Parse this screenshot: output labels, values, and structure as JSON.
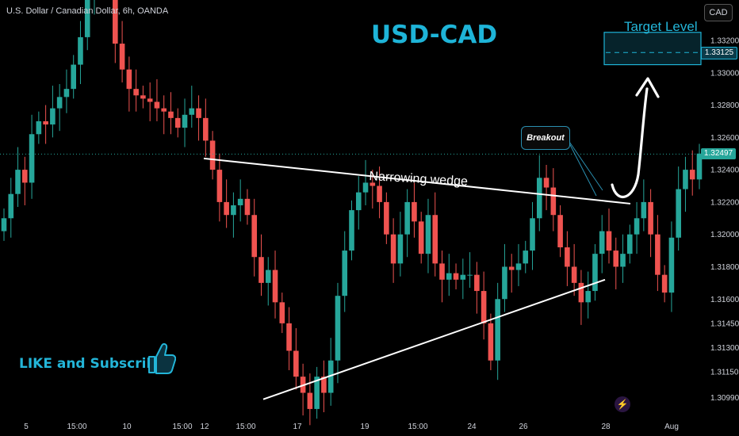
{
  "header": {
    "symbol_line": "U.S. Dollar / Canadian Dollar, 6h, OANDA"
  },
  "currency_button": "CAD",
  "title": "USD-CAD",
  "target_label": "Target Level",
  "wedge_label": "Narrowing wedge",
  "breakout_label": "Breakout",
  "like_text": "LIKE and Subscribe",
  "flash_icon": "lightning-icon",
  "colors": {
    "up": "#26a69a",
    "down": "#ef5350",
    "accent": "#1eb4d8",
    "background": "#000000",
    "text": "#d1d4dc"
  },
  "chart_data": {
    "type": "candlestick",
    "y_axis": {
      "ticks": [
        "1.33200",
        "1.33000",
        "1.32800",
        "1.32600",
        "1.32400",
        "1.32200",
        "1.32000",
        "1.31800",
        "1.31600",
        "1.31450",
        "1.31300",
        "1.31150",
        "1.30990"
      ],
      "range": [
        1.309,
        1.3345
      ],
      "current_price": "1.32497",
      "target_price": "1.33125"
    },
    "x_axis": {
      "labels": [
        "5",
        "15:00",
        "10",
        "15:00",
        "12",
        "15:00",
        "17",
        "19",
        "15:00",
        "24",
        "26",
        "28",
        "Aug"
      ]
    },
    "target_zone": [
      1.3305,
      1.3325
    ],
    "wedge": {
      "upper": [
        [
          0,
          1.3247
        ],
        [
          1,
          1.3219
        ]
      ],
      "lower": [
        [
          0,
          1.3098
        ],
        [
          1,
          1.3172
        ]
      ]
    },
    "closes": [
      1.321,
      1.3225,
      1.324,
      1.3232,
      1.3262,
      1.327,
      1.3268,
      1.3278,
      1.3285,
      1.329,
      1.3305,
      1.3322,
      1.335,
      1.338,
      1.3392,
      1.3372,
      1.3318,
      1.3302,
      1.329,
      1.3286,
      1.3284,
      1.3282,
      1.3278,
      1.3276,
      1.3272,
      1.3266,
      1.3274,
      1.3278,
      1.3272,
      1.3258,
      1.324,
      1.322,
      1.3212,
      1.3218,
      1.3222,
      1.3212,
      1.3186,
      1.317,
      1.3178,
      1.3158,
      1.3145,
      1.3128,
      1.3112,
      1.3102,
      1.3092,
      1.3112,
      1.3102,
      1.3122,
      1.3162,
      1.319,
      1.3215,
      1.3226,
      1.3232,
      1.323,
      1.322,
      1.32,
      1.3182,
      1.32,
      1.322,
      1.3208,
      1.3188,
      1.3212,
      1.3182,
      1.3172,
      1.3176,
      1.3172,
      1.3175,
      1.3175,
      1.3165,
      1.3145,
      1.3122,
      1.316,
      1.318,
      1.3178,
      1.3182,
      1.319,
      1.321,
      1.3235,
      1.3229,
      1.3212,
      1.3192,
      1.318,
      1.317,
      1.3158,
      1.3165,
      1.3188,
      1.3202,
      1.319,
      1.318,
      1.3188,
      1.32,
      1.321,
      1.322,
      1.32,
      1.3175,
      1.3164,
      1.3198,
      1.3228,
      1.324,
      1.3234,
      1.325
    ]
  }
}
